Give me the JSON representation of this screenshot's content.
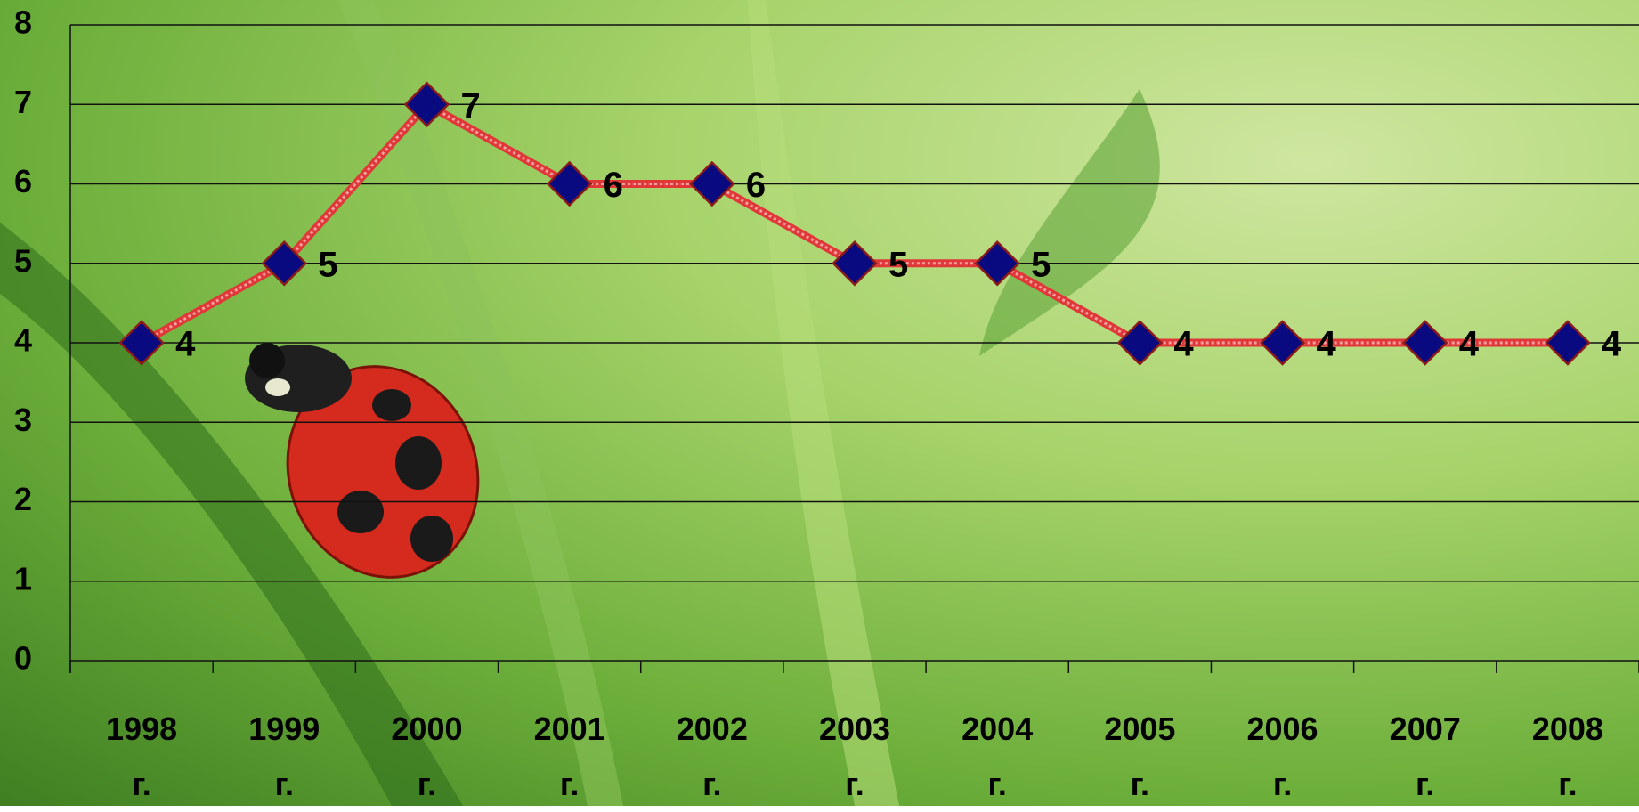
{
  "chart_data": {
    "type": "line",
    "categories": [
      "1998 г.",
      "1999 г.",
      "2000 г.",
      "2001 г.",
      "2002 г.",
      "2003 г.",
      "2004 г.",
      "2005 г.",
      "2006 г.",
      "2007 г.",
      "2008 г."
    ],
    "series": [
      {
        "color": "#e03838",
        "marker_color": "#0a0a80",
        "values": [
          4,
          5,
          7,
          6,
          6,
          5,
          5,
          4,
          4,
          4,
          4
        ]
      }
    ],
    "ylim": [
      0,
      8
    ],
    "yticks": [
      0,
      1,
      2,
      3,
      4,
      5,
      6,
      7,
      8
    ],
    "grid": true,
    "data_labels": true
  }
}
